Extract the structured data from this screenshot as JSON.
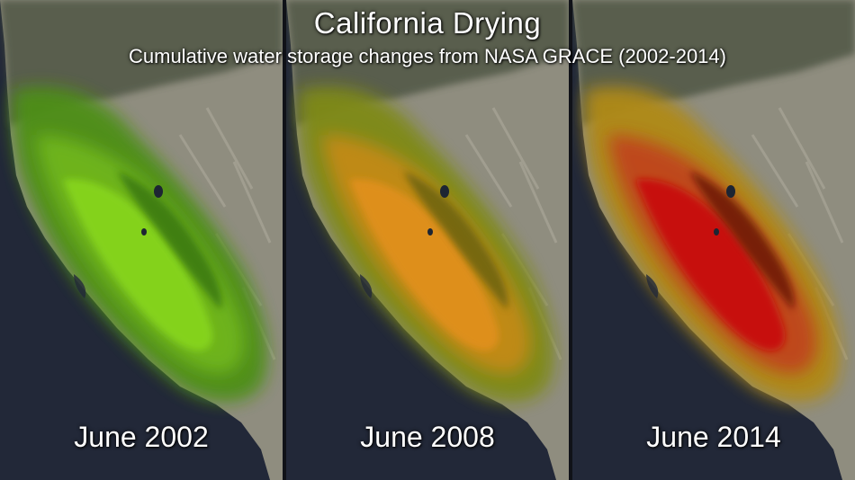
{
  "title": "California Drying",
  "subtitle": "Cumulative water storage changes from NASA GRACE (2002-2014)",
  "panels": [
    {
      "label": "June 2002",
      "colors": {
        "outer": "#4e8f12",
        "mid": "#6fb61a",
        "core": "#86d41e",
        "basin": "#2f6a0c"
      }
    },
    {
      "label": "June 2008",
      "colors": {
        "outer": "#7f8a12",
        "mid": "#c38a14",
        "core": "#e0901c",
        "basin": "#5a5a0d"
      }
    },
    {
      "label": "June 2014",
      "colors": {
        "outer": "#b08a14",
        "mid": "#c0441a",
        "core": "#c8100e",
        "basin": "#5a0a06"
      }
    }
  ],
  "colors": {
    "ocean": "#222838",
    "land": "#8f8d7f",
    "forest": "#46503c"
  }
}
